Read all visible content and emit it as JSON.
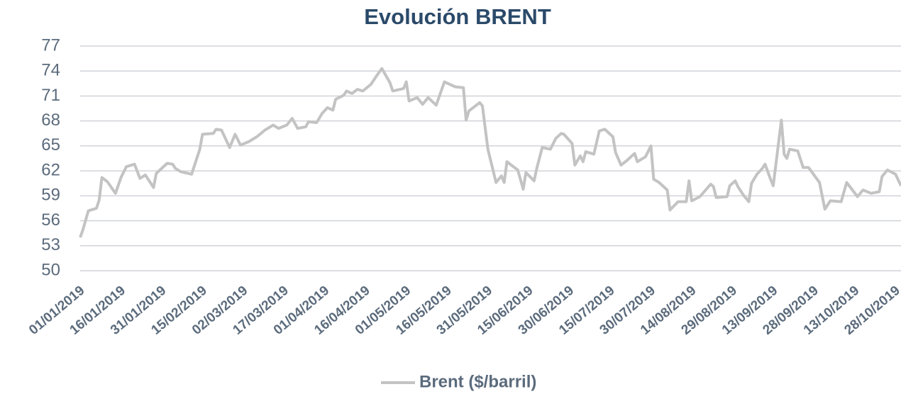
{
  "chart_data": {
    "type": "line",
    "title": "Evolución BRENT",
    "xlim": [
      1,
      303
    ],
    "xticks": [
      {
        "value": 1,
        "label": "01/01/2019"
      },
      {
        "value": 16,
        "label": "16/01/2019"
      },
      {
        "value": 31,
        "label": "31/01/2019"
      },
      {
        "value": 46,
        "label": "15/02/2019"
      },
      {
        "value": 61,
        "label": "02/03/2019"
      },
      {
        "value": 76,
        "label": "17/03/2019"
      },
      {
        "value": 91,
        "label": "01/04/2019"
      },
      {
        "value": 106,
        "label": "16/04/2019"
      },
      {
        "value": 121,
        "label": "01/05/2019"
      },
      {
        "value": 136,
        "label": "16/05/2019"
      },
      {
        "value": 151,
        "label": "31/05/2019"
      },
      {
        "value": 166,
        "label": "15/06/2019"
      },
      {
        "value": 181,
        "label": "30/06/2019"
      },
      {
        "value": 196,
        "label": "15/07/2019"
      },
      {
        "value": 211,
        "label": "30/07/2019"
      },
      {
        "value": 226,
        "label": "14/08/2019"
      },
      {
        "value": 241,
        "label": "29/08/2019"
      },
      {
        "value": 256,
        "label": "13/09/2019"
      },
      {
        "value": 271,
        "label": "28/09/2019"
      },
      {
        "value": 286,
        "label": "13/10/2019"
      },
      {
        "value": 301,
        "label": "28/10/2019"
      }
    ],
    "ylim": [
      50,
      77
    ],
    "yticks": [
      50,
      53,
      56,
      59,
      62,
      65,
      68,
      71,
      74,
      77
    ],
    "grid": true,
    "legend": "bottom",
    "x": [
      1,
      2,
      4,
      7,
      8,
      9,
      11,
      14,
      16,
      18,
      21,
      23,
      25,
      28,
      29,
      33,
      35,
      36,
      38,
      42,
      45,
      46,
      50,
      51,
      53,
      56,
      58,
      60,
      63,
      66,
      69,
      72,
      74,
      77,
      79,
      81,
      84,
      85,
      88,
      90,
      92,
      94,
      95,
      98,
      99,
      101,
      103,
      105,
      108,
      110,
      112,
      115,
      116,
      120,
      121,
      122,
      125,
      127,
      129,
      132,
      135,
      139,
      142,
      143,
      144,
      148,
      149,
      151,
      154,
      156,
      157,
      158,
      162,
      164,
      165,
      168,
      169,
      171,
      174,
      176,
      178,
      179,
      182,
      183,
      185,
      186,
      187,
      190,
      192,
      194,
      197,
      198,
      200,
      202,
      205,
      206,
      209,
      211,
      212,
      214,
      217,
      218,
      221,
      224,
      225,
      226,
      229,
      233,
      234,
      235,
      239,
      240,
      242,
      243,
      245,
      247,
      248,
      250,
      252,
      253,
      255,
      256,
      259,
      260,
      261,
      262,
      265,
      267,
      269,
      273,
      275,
      277,
      281,
      283,
      287,
      289,
      292,
      295,
      296,
      298,
      301,
      303
    ],
    "series": [
      {
        "name": "Brent ($/barril)",
        "color": "#c3c3c3",
        "values": [
          54.0,
          54.9,
          57.2,
          57.5,
          58.5,
          61.2,
          60.7,
          59.3,
          61.2,
          62.5,
          62.8,
          61.1,
          61.5,
          60.0,
          61.7,
          62.9,
          62.8,
          62.3,
          61.9,
          61.6,
          64.6,
          66.4,
          66.5,
          67.0,
          66.9,
          64.8,
          66.4,
          65.1,
          65.5,
          66.1,
          66.9,
          67.5,
          67.1,
          67.5,
          68.3,
          67.1,
          67.3,
          67.9,
          67.8,
          68.9,
          69.6,
          69.3,
          70.6,
          71.1,
          71.6,
          71.3,
          71.8,
          71.6,
          72.4,
          73.4,
          74.3,
          72.6,
          71.6,
          71.9,
          72.7,
          70.4,
          70.8,
          70.0,
          70.8,
          69.9,
          72.7,
          72.1,
          72.0,
          68.1,
          69.2,
          70.2,
          69.8,
          64.6,
          60.6,
          61.4,
          60.6,
          63.1,
          62.1,
          59.8,
          61.8,
          60.8,
          62.3,
          64.8,
          64.6,
          65.9,
          66.5,
          66.4,
          65.3,
          62.7,
          63.8,
          63.1,
          64.3,
          64.0,
          66.8,
          67.0,
          66.1,
          64.2,
          62.7,
          63.2,
          64.1,
          63.1,
          63.7,
          65.0,
          61.0,
          60.6,
          59.7,
          57.3,
          58.3,
          58.3,
          60.8,
          58.4,
          58.9,
          60.4,
          60.1,
          58.8,
          58.9,
          60.2,
          60.8,
          60.1,
          59.1,
          58.3,
          60.5,
          61.6,
          62.3,
          62.8,
          61.0,
          60.2,
          68.1,
          64.0,
          63.5,
          64.6,
          64.4,
          62.4,
          62.4,
          60.6,
          57.4,
          58.4,
          58.3,
          60.6,
          58.9,
          59.7,
          59.3,
          59.5,
          61.3,
          62.1,
          61.6,
          60.2
        ]
      }
    ]
  }
}
